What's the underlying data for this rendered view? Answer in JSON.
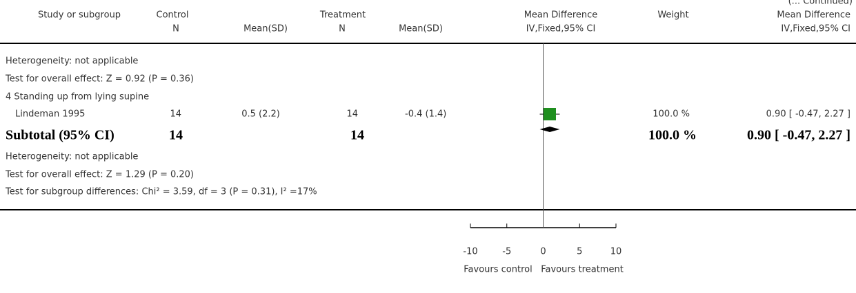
{
  "header": {
    "continued": "(... Continued)",
    "columns": [
      "Study or subgroup",
      "Control",
      "Treatment",
      "Mean Difference",
      "Weight",
      "Mean Difference"
    ],
    "subcolumns": [
      "N",
      "Mean(SD)",
      "N",
      "Mean(SD)",
      "IV,Fixed,95% CI",
      "IV,Fixed,95% CI"
    ]
  },
  "lines": [
    "Heterogeneity: not applicable",
    "Test for overall effect: Z = 0.92 (P = 0.36)",
    "4 Standing up from lying supine"
  ],
  "study": {
    "name": "Lindeman 1995",
    "control_n": 14,
    "control_mean_sd": "0.5 (2.2)",
    "treatment_n": 14,
    "treatment_mean_sd": "-0.4 (1.4)",
    "weight": "100.0 %",
    "ci": "0.90 [ -0.47, 2.27 ]",
    "md": 0.9,
    "lower": -0.47,
    "upper": 2.27
  },
  "subtotal": {
    "label": "Subtotal (95% CI)",
    "control_n": 14,
    "treatment_n": 14,
    "weight": "100.0 %",
    "ci": "0.90 [ -0.47, 2.27 ]",
    "md": 0.9,
    "lower": -0.47,
    "upper": 2.27
  },
  "footer_lines": [
    "Heterogeneity: not applicable",
    "Test for overall effect: Z = 1.29 (P = 0.20)",
    "Test for subgroup differences: Chi² = 3.59, df = 3 (P = 0.31), I² =17%"
  ],
  "axis": {
    "xlim": [
      -10,
      10
    ],
    "xticks": [
      -10,
      -5,
      0,
      5,
      10
    ],
    "left_label": "Favours control",
    "right_label": "Favours treatment"
  }
}
